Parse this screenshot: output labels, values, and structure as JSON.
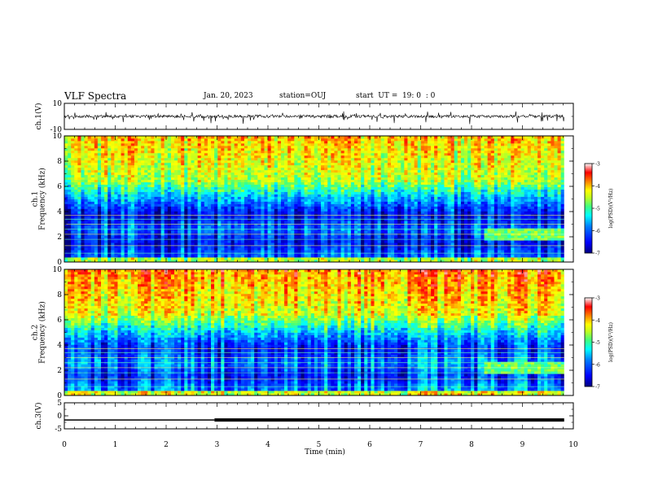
{
  "header": {
    "title": "VLF Spectra",
    "date": "Jan. 20, 2023",
    "station": "station=OUJ",
    "start": "start  UT =  19: 0  : 0"
  },
  "chart_data": [
    {
      "type": "line",
      "panel": "ch1-waveform",
      "ylabel": "ch.1(V)",
      "ylim": [
        -10,
        10
      ],
      "yticks": [
        "10",
        "-10"
      ],
      "xlim": [
        0,
        10
      ],
      "note_values": "noisy waveform centred near 0 V with spikes"
    },
    {
      "type": "heatmap",
      "panel": "ch1-spectrogram",
      "ylabel": "ch.1\nFrequency  (kHz)",
      "ylabel_lines": [
        "ch.1",
        "Frequency  (kHz)"
      ],
      "ylim": [
        0,
        10
      ],
      "yticks": [
        "0",
        "2",
        "4",
        "6",
        "8",
        "10"
      ],
      "xlim": [
        0,
        10
      ],
      "colorbar": {
        "label": "log(PSD)(V²/Hz)",
        "range": [
          -7,
          -3
        ],
        "ticks": [
          "-3",
          "-4",
          "-5",
          "-6",
          "-7"
        ]
      }
    },
    {
      "type": "heatmap",
      "panel": "ch2-spectrogram",
      "ylabel": "ch.2\nFrequency  (kHz)",
      "ylabel_lines": [
        "ch.2",
        "Frequency  (kHz)"
      ],
      "ylim": [
        0,
        10
      ],
      "yticks": [
        "0",
        "2",
        "4",
        "6",
        "8",
        "10"
      ],
      "xlim": [
        0,
        10
      ],
      "colorbar": {
        "label": "log(PSD)(V²/Hz)",
        "range": [
          -7,
          -3
        ],
        "ticks": [
          "-3",
          "-4",
          "-5",
          "-6",
          "-7"
        ]
      }
    },
    {
      "type": "line",
      "panel": "ch3-trace",
      "ylabel": "ch.3(V)",
      "ylim": [
        -5,
        5
      ],
      "yticks": [
        "5",
        "0",
        "-5"
      ],
      "xlim": [
        0,
        10
      ],
      "segments": [
        {
          "x": [
            0,
            2.95
          ],
          "y": [
            -1.6,
            -1.6
          ],
          "weight": "thin"
        },
        {
          "x": [
            2.95,
            9.82
          ],
          "y": [
            -1.6,
            -1.6
          ],
          "weight": "thick"
        }
      ]
    }
  ],
  "xaxis": {
    "label": "Time  (min)",
    "ticks": [
      "0",
      "1",
      "2",
      "3",
      "4",
      "5",
      "6",
      "7",
      "8",
      "9",
      "10"
    ],
    "range": [
      0,
      10
    ],
    "data_end": 9.82
  },
  "colors": {
    "colormap": [
      "#00007f",
      "#0000ff",
      "#0080ff",
      "#00ffff",
      "#80ff80",
      "#ffff00",
      "#ff8000",
      "#ff0000",
      "#ffffff"
    ]
  }
}
